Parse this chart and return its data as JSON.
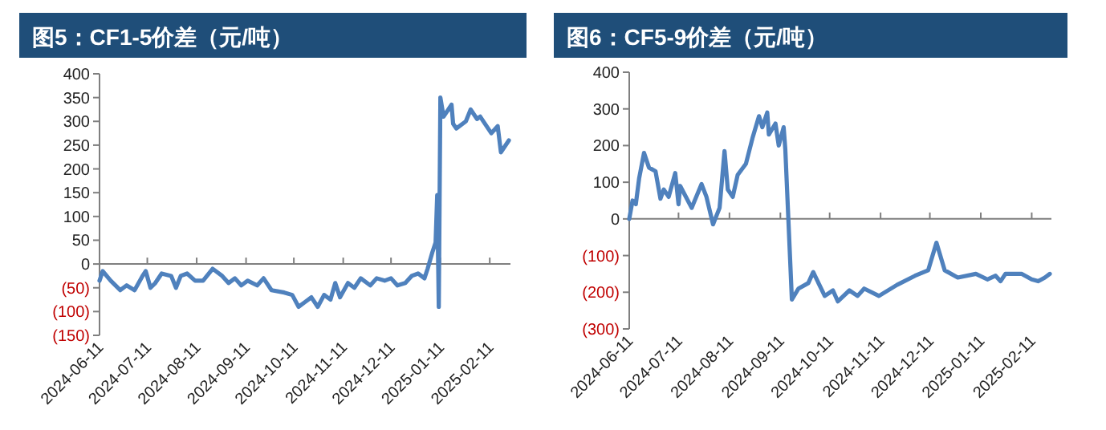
{
  "chart_data": [
    {
      "type": "line",
      "title": "图5：CF1-5价差（元/吨）",
      "color": "#4f81bd",
      "marker": "none",
      "line_style": "solid",
      "x": [
        "2024-06-11",
        "2024-06-13",
        "2024-06-18",
        "2024-06-24",
        "2024-06-28",
        "2024-07-03",
        "2024-07-08",
        "2024-07-10",
        "2024-07-13",
        "2024-07-16",
        "2024-07-20",
        "2024-07-26",
        "2024-07-29",
        "2024-08-01",
        "2024-08-05",
        "2024-08-10",
        "2024-08-15",
        "2024-08-21",
        "2024-08-27",
        "2024-08-31",
        "2024-09-04",
        "2024-09-08",
        "2024-09-12",
        "2024-09-18",
        "2024-09-22",
        "2024-09-27",
        "2024-10-05",
        "2024-10-10",
        "2024-10-14",
        "2024-10-18",
        "2024-10-22",
        "2024-10-26",
        "2024-10-30",
        "2024-11-03",
        "2024-11-06",
        "2024-11-09",
        "2024-11-14",
        "2024-11-18",
        "2024-11-22",
        "2024-11-28",
        "2024-12-02",
        "2024-12-07",
        "2024-12-11",
        "2024-12-15",
        "2024-12-20",
        "2024-12-24",
        "2024-12-28",
        "2025-01-01",
        "2025-01-03",
        "2025-01-06",
        "2025-01-08",
        "2025-01-09",
        "2025-01-10",
        "2025-01-11",
        "2025-01-13",
        "2025-01-18",
        "2025-01-19",
        "2025-01-21",
        "2025-01-27",
        "2025-01-30",
        "2025-02-03",
        "2025-02-05",
        "2025-02-12",
        "2025-02-16",
        "2025-02-18",
        "2025-02-23"
      ],
      "values": [
        -35,
        -15,
        -35,
        -55,
        -45,
        -55,
        -25,
        -15,
        -50,
        -40,
        -20,
        -25,
        -50,
        -25,
        -20,
        -35,
        -35,
        -10,
        -25,
        -40,
        -30,
        -45,
        -35,
        -45,
        -30,
        -55,
        -60,
        -65,
        -90,
        -80,
        -70,
        -90,
        -65,
        -75,
        -40,
        -70,
        -40,
        -50,
        -30,
        -45,
        -30,
        -35,
        -30,
        -45,
        -40,
        -25,
        -20,
        -30,
        -10,
        25,
        45,
        145,
        -90,
        350,
        310,
        335,
        295,
        285,
        300,
        325,
        305,
        310,
        275,
        290,
        235,
        260
      ],
      "xlim": [
        "2024-06-11",
        "2025-02-24"
      ],
      "xticks": [
        "2024-06-11",
        "2024-07-11",
        "2024-08-11",
        "2024-09-11",
        "2024-10-11",
        "2024-11-11",
        "2024-12-11",
        "2025-01-11",
        "2025-02-11"
      ],
      "ylim": [
        -150,
        400
      ],
      "yticks": [
        {
          "value": -150,
          "label": "(150)"
        },
        {
          "value": -100,
          "label": "(100)"
        },
        {
          "value": -50,
          "label": "(50)"
        },
        0,
        50,
        100,
        150,
        200,
        250,
        300,
        350,
        400
      ]
    },
    {
      "type": "line",
      "title": "图6：CF5-9价差（元/吨）",
      "color": "#4f81bd",
      "marker": "none",
      "line_style": "solid",
      "x": [
        "2024-06-11",
        "2024-06-13",
        "2024-06-15",
        "2024-06-17",
        "2024-06-20",
        "2024-06-23",
        "2024-06-27",
        "2024-06-30",
        "2024-07-02",
        "2024-07-05",
        "2024-07-09",
        "2024-07-11",
        "2024-07-12",
        "2024-07-19",
        "2024-07-25",
        "2024-07-28",
        "2024-08-01",
        "2024-08-05",
        "2024-08-08",
        "2024-08-10",
        "2024-08-13",
        "2024-08-16",
        "2024-08-21",
        "2024-08-25",
        "2024-08-29",
        "2024-08-31",
        "2024-09-03",
        "2024-09-04",
        "2024-09-08",
        "2024-09-10",
        "2024-09-13",
        "2024-09-14",
        "2024-09-18",
        "2024-09-22",
        "2024-09-28",
        "2024-10-01",
        "2024-10-08",
        "2024-10-13",
        "2024-10-16",
        "2024-10-23",
        "2024-10-28",
        "2024-11-01",
        "2024-11-10",
        "2024-11-21",
        "2024-12-02",
        "2024-12-10",
        "2024-12-15",
        "2024-12-20",
        "2024-12-28",
        "2025-01-08",
        "2025-01-15",
        "2025-01-20",
        "2025-01-23",
        "2025-01-26",
        "2025-02-05",
        "2025-02-11",
        "2025-02-15",
        "2025-02-19",
        "2025-02-22"
      ],
      "values": [
        0,
        50,
        40,
        110,
        180,
        140,
        130,
        55,
        80,
        60,
        125,
        40,
        90,
        30,
        95,
        60,
        -15,
        30,
        185,
        80,
        60,
        120,
        150,
        220,
        280,
        250,
        290,
        230,
        260,
        200,
        250,
        190,
        -220,
        -190,
        -175,
        -145,
        -210,
        -195,
        -225,
        -195,
        -210,
        -190,
        -210,
        -180,
        -155,
        -140,
        -65,
        -140,
        -160,
        -150,
        -165,
        -155,
        -170,
        -150,
        -150,
        -165,
        -170,
        -160,
        -150
      ],
      "xlim": [
        "2024-06-11",
        "2025-02-23"
      ],
      "xticks": [
        "2024-06-11",
        "2024-07-11",
        "2024-08-11",
        "2024-09-11",
        "2024-10-11",
        "2024-11-11",
        "2024-12-11",
        "2025-01-11",
        "2025-02-11"
      ],
      "ylim": [
        -300,
        400
      ],
      "yticks": [
        {
          "value": -300,
          "label": "(300)"
        },
        {
          "value": -200,
          "label": "(200)"
        },
        {
          "value": -100,
          "label": "(100)"
        },
        0,
        100,
        200,
        300,
        400
      ]
    }
  ]
}
